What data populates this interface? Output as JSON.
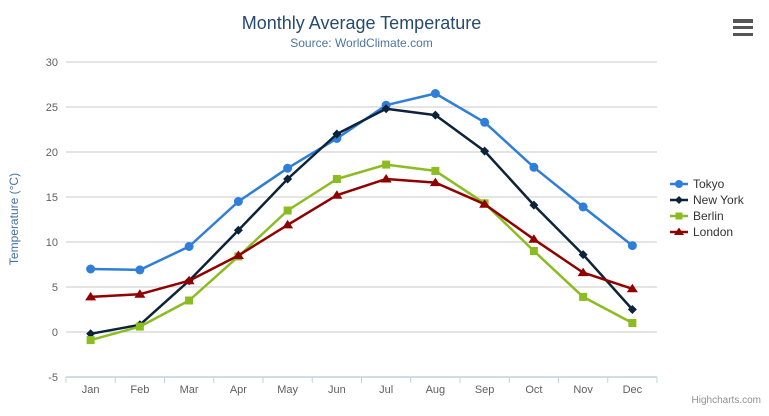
{
  "chart_data": {
    "type": "line",
    "title": "Monthly Average Temperature",
    "subtitle": "Source: WorldClimate.com",
    "xlabel": "",
    "ylabel": "Temperature (°C)",
    "categories": [
      "Jan",
      "Feb",
      "Mar",
      "Apr",
      "May",
      "Jun",
      "Jul",
      "Aug",
      "Sep",
      "Oct",
      "Nov",
      "Dec"
    ],
    "ylim": [
      -5,
      30
    ],
    "y_tick_step": 5,
    "grid": true,
    "legend_position": "right",
    "series": [
      {
        "name": "Tokyo",
        "color": "#2f7ed8",
        "marker": "circle",
        "values": [
          7.0,
          6.9,
          9.5,
          14.5,
          18.2,
          21.5,
          25.2,
          26.5,
          23.3,
          18.3,
          13.9,
          9.6
        ]
      },
      {
        "name": "New York",
        "color": "#0d233a",
        "marker": "diamond",
        "values": [
          -0.2,
          0.8,
          5.7,
          11.3,
          17.0,
          22.0,
          24.8,
          24.1,
          20.1,
          14.1,
          8.6,
          2.5
        ]
      },
      {
        "name": "Berlin",
        "color": "#8bbc21",
        "marker": "square",
        "values": [
          -0.9,
          0.6,
          3.5,
          8.4,
          13.5,
          17.0,
          18.6,
          17.9,
          14.3,
          9.0,
          3.9,
          1.0
        ]
      },
      {
        "name": "London",
        "color": "#910000",
        "marker": "triangle",
        "values": [
          3.9,
          4.2,
          5.7,
          8.5,
          11.9,
          15.2,
          17.0,
          16.6,
          14.2,
          10.3,
          6.6,
          4.8
        ]
      }
    ]
  },
  "colors": {
    "title": "#274b6d",
    "subtitle": "#4d759e",
    "axis_label": "#606060",
    "axis_title": "#4572a7",
    "grid": "#c8c8c8",
    "axis_line": "#c0d0e0",
    "legend_text": "#333333",
    "credits": "#909090",
    "menu_icon": "#555555"
  },
  "menu": {
    "icon": "hamburger-icon"
  },
  "credits": {
    "label": "Highcharts.com"
  }
}
